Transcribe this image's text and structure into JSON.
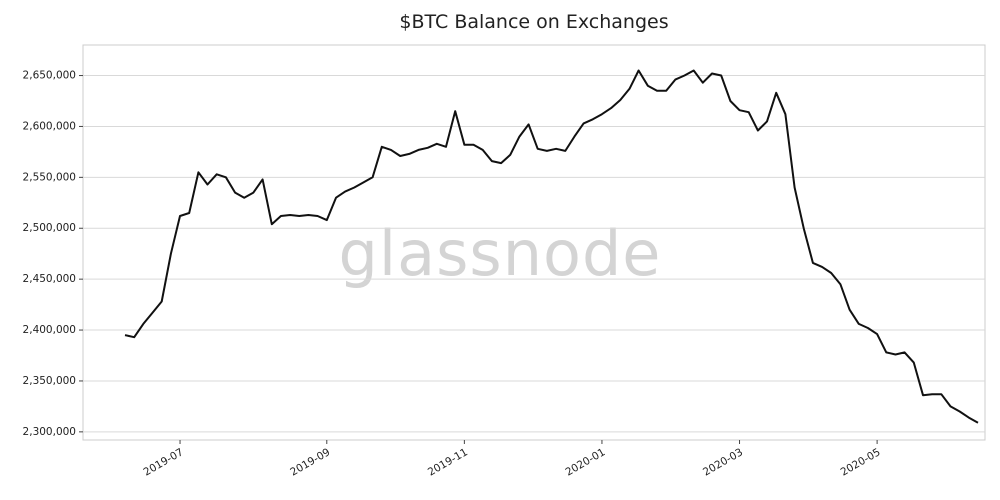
{
  "chart_data": {
    "type": "line",
    "title": "$BTC Balance on Exchanges",
    "watermark": "glassnode",
    "color": "#111111",
    "grid": true,
    "categories": [
      null,
      null,
      null,
      null,
      null,
      null,
      "2019-07",
      null,
      null,
      null,
      null,
      null,
      null,
      null,
      null,
      null,
      null,
      null,
      null,
      null,
      null,
      null,
      "2019-09",
      null,
      null,
      null,
      null,
      null,
      null,
      null,
      null,
      null,
      null,
      null,
      null,
      null,
      null,
      "2019-11",
      null,
      null,
      null,
      null,
      null,
      null,
      null,
      null,
      null,
      null,
      null,
      null,
      null,
      null,
      "2020-01",
      null,
      null,
      null,
      null,
      null,
      null,
      null,
      null,
      null,
      null,
      null,
      null,
      null,
      null,
      "2020-03",
      null,
      null,
      null,
      null,
      null,
      null,
      null,
      null,
      null,
      null,
      null,
      null,
      null,
      null,
      "2020-05",
      null,
      null,
      null,
      null,
      null,
      null,
      null,
      null,
      null,
      null,
      null
    ],
    "values": [
      2395000,
      2393000,
      2406000,
      2417000,
      2428000,
      2475000,
      2512000,
      2515000,
      2555000,
      2543000,
      2553000,
      2550000,
      2535000,
      2530000,
      2535000,
      2548000,
      2504000,
      2512000,
      2513000,
      2512000,
      2513000,
      2512000,
      2508000,
      2530000,
      2536000,
      2540000,
      2545000,
      2550000,
      2580000,
      2577000,
      2571000,
      2573000,
      2577000,
      2579000,
      2583000,
      2580000,
      2615000,
      2582000,
      2582000,
      2577000,
      2566000,
      2564000,
      2572000,
      2590000,
      2602000,
      2578000,
      2576000,
      2578000,
      2576000,
      2590000,
      2603000,
      2607000,
      2612000,
      2618000,
      2626000,
      2637000,
      2655000,
      2640000,
      2635000,
      2635000,
      2646000,
      2650000,
      2655000,
      2643000,
      2652000,
      2650000,
      2625000,
      2616000,
      2614000,
      2596000,
      2605000,
      2633000,
      2612000,
      2540000,
      2500000,
      2466000,
      2462000,
      2456000,
      2445000,
      2420000,
      2406000,
      2402000,
      2396000,
      2378000,
      2376000,
      2378000,
      2368000,
      2336000,
      2337000,
      2337000,
      2325000,
      2320000,
      2314000,
      2309000
    ],
    "ylim": [
      2292000,
      2680000
    ],
    "yticks": [
      {
        "value": 2300000,
        "label": "2,300,000"
      },
      {
        "value": 2350000,
        "label": "2,350,000"
      },
      {
        "value": 2400000,
        "label": "2,400,000"
      },
      {
        "value": 2450000,
        "label": "2,450,000"
      },
      {
        "value": 2500000,
        "label": "2,500,000"
      },
      {
        "value": 2550000,
        "label": "2,550,000"
      },
      {
        "value": 2600000,
        "label": "2,600,000"
      },
      {
        "value": 2650000,
        "label": "2,650,000"
      }
    ]
  }
}
